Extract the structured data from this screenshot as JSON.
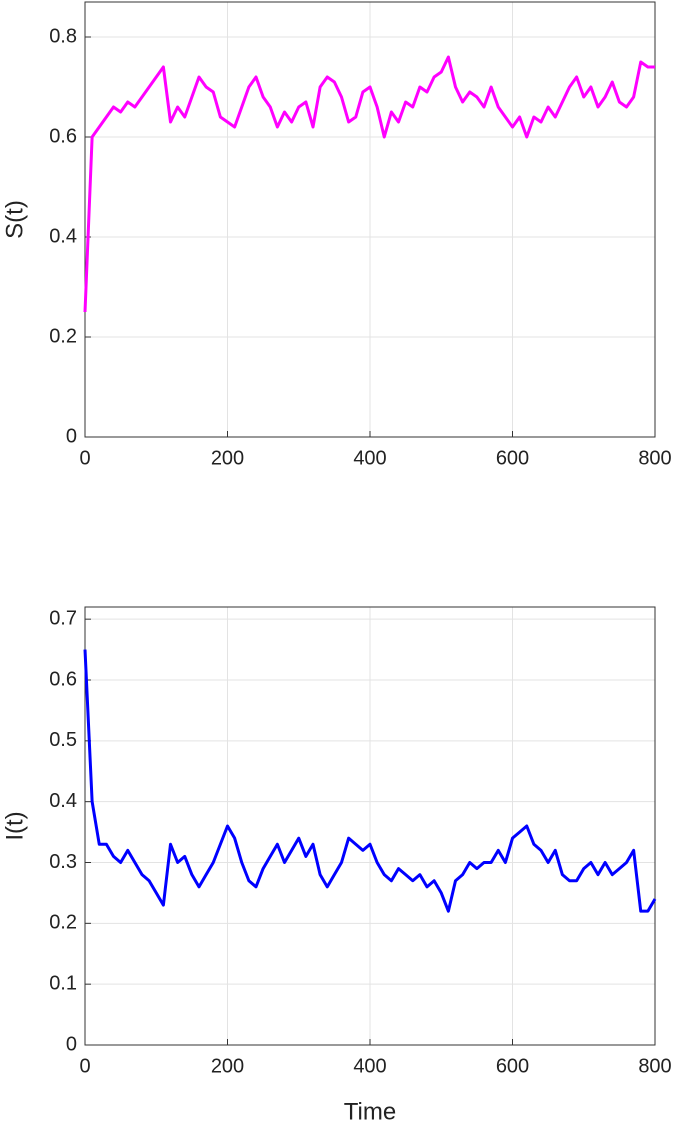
{
  "chart_data": [
    {
      "type": "line",
      "y_label": "S(t)",
      "color": "#ff00ff",
      "x": [
        0,
        10,
        20,
        30,
        40,
        50,
        60,
        70,
        80,
        90,
        100,
        110,
        120,
        130,
        140,
        150,
        160,
        170,
        180,
        190,
        200,
        210,
        220,
        230,
        240,
        250,
        260,
        270,
        280,
        290,
        300,
        310,
        320,
        330,
        340,
        350,
        360,
        370,
        380,
        390,
        400,
        410,
        420,
        430,
        440,
        450,
        460,
        470,
        480,
        490,
        500,
        510,
        520,
        530,
        540,
        550,
        560,
        570,
        580,
        590,
        600,
        610,
        620,
        630,
        640,
        650,
        660,
        670,
        680,
        690,
        700,
        710,
        720,
        730,
        740,
        750,
        760,
        770,
        780,
        790,
        800
      ],
      "values": [
        0.25,
        0.6,
        0.62,
        0.64,
        0.66,
        0.65,
        0.67,
        0.66,
        0.68,
        0.7,
        0.72,
        0.74,
        0.63,
        0.66,
        0.64,
        0.68,
        0.72,
        0.7,
        0.69,
        0.64,
        0.63,
        0.62,
        0.66,
        0.7,
        0.72,
        0.68,
        0.66,
        0.62,
        0.65,
        0.63,
        0.66,
        0.67,
        0.62,
        0.7,
        0.72,
        0.71,
        0.68,
        0.63,
        0.64,
        0.69,
        0.7,
        0.66,
        0.6,
        0.65,
        0.63,
        0.67,
        0.66,
        0.7,
        0.69,
        0.72,
        0.73,
        0.76,
        0.7,
        0.67,
        0.69,
        0.68,
        0.66,
        0.7,
        0.66,
        0.64,
        0.62,
        0.64,
        0.6,
        0.64,
        0.63,
        0.66,
        0.64,
        0.67,
        0.7,
        0.72,
        0.68,
        0.7,
        0.66,
        0.68,
        0.71,
        0.67,
        0.66,
        0.68,
        0.75,
        0.74,
        0.74
      ],
      "xlim": [
        0,
        800
      ],
      "xticks": [
        0,
        200,
        400,
        600,
        800
      ],
      "ylim": [
        0,
        0.87
      ],
      "yticks": [
        0,
        0.2,
        0.4,
        0.6,
        0.8
      ],
      "grid": true
    },
    {
      "type": "line",
      "y_label": "I(t)",
      "x_label": "Time",
      "color": "#0000ff",
      "x": [
        0,
        10,
        20,
        30,
        40,
        50,
        60,
        70,
        80,
        90,
        100,
        110,
        120,
        130,
        140,
        150,
        160,
        170,
        180,
        190,
        200,
        210,
        220,
        230,
        240,
        250,
        260,
        270,
        280,
        290,
        300,
        310,
        320,
        330,
        340,
        350,
        360,
        370,
        380,
        390,
        400,
        410,
        420,
        430,
        440,
        450,
        460,
        470,
        480,
        490,
        500,
        510,
        520,
        530,
        540,
        550,
        560,
        570,
        580,
        590,
        600,
        610,
        620,
        630,
        640,
        650,
        660,
        670,
        680,
        690,
        700,
        710,
        720,
        730,
        740,
        750,
        760,
        770,
        780,
        790,
        800
      ],
      "values": [
        0.65,
        0.4,
        0.33,
        0.33,
        0.31,
        0.3,
        0.32,
        0.3,
        0.28,
        0.27,
        0.25,
        0.23,
        0.33,
        0.3,
        0.31,
        0.28,
        0.26,
        0.28,
        0.3,
        0.33,
        0.36,
        0.34,
        0.3,
        0.27,
        0.26,
        0.29,
        0.31,
        0.33,
        0.3,
        0.32,
        0.34,
        0.31,
        0.33,
        0.28,
        0.26,
        0.28,
        0.3,
        0.34,
        0.33,
        0.32,
        0.33,
        0.3,
        0.28,
        0.27,
        0.29,
        0.28,
        0.27,
        0.28,
        0.26,
        0.27,
        0.25,
        0.22,
        0.27,
        0.28,
        0.3,
        0.29,
        0.3,
        0.3,
        0.32,
        0.3,
        0.34,
        0.35,
        0.36,
        0.33,
        0.32,
        0.3,
        0.32,
        0.28,
        0.27,
        0.27,
        0.29,
        0.3,
        0.28,
        0.3,
        0.28,
        0.29,
        0.3,
        0.32,
        0.22,
        0.22,
        0.24
      ],
      "xlim": [
        0,
        800
      ],
      "xticks": [
        0,
        200,
        400,
        600,
        800
      ],
      "ylim": [
        0,
        0.72
      ],
      "yticks": [
        0,
        0.1,
        0.2,
        0.3,
        0.4,
        0.5,
        0.6,
        0.7
      ],
      "grid": true
    }
  ]
}
